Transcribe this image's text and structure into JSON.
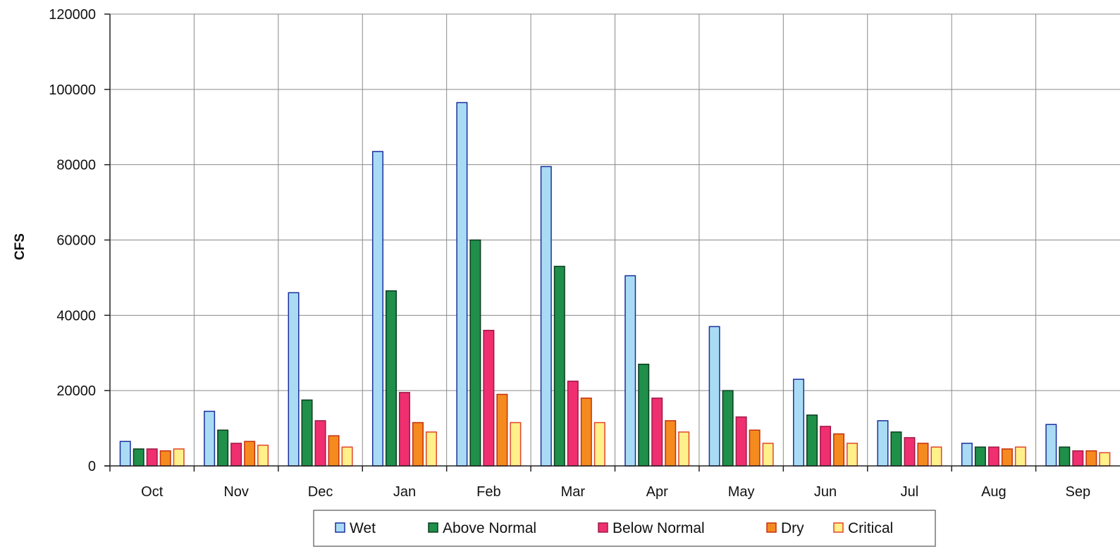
{
  "chart_data": {
    "type": "bar",
    "title": "",
    "xlabel": "",
    "ylabel": "CFS",
    "ylim": [
      0,
      120000
    ],
    "yticks": [
      0,
      20000,
      40000,
      60000,
      80000,
      100000,
      120000
    ],
    "grid": true,
    "legend_position": "bottom",
    "categories": [
      "Oct",
      "Nov",
      "Dec",
      "Jan",
      "Feb",
      "Mar",
      "Apr",
      "May",
      "Jun",
      "Jul",
      "Aug",
      "Sep"
    ],
    "series": [
      {
        "name": "Wet",
        "color": "#a9dcf4",
        "stroke": "#1a2f9c",
        "values": [
          6500,
          14500,
          46000,
          83500,
          96500,
          79500,
          50500,
          37000,
          23000,
          12000,
          6000,
          11000
        ]
      },
      {
        "name": "Above Normal",
        "color": "#1f8f4a",
        "stroke": "#0b3d1f",
        "values": [
          4500,
          9500,
          17500,
          46500,
          60000,
          53000,
          27000,
          20000,
          13500,
          9000,
          5000,
          5000
        ]
      },
      {
        "name": "Below Normal",
        "color": "#ef2f6f",
        "stroke": "#a01848",
        "values": [
          4500,
          6000,
          12000,
          19500,
          36000,
          22500,
          18000,
          13000,
          10500,
          7500,
          5000,
          4000
        ]
      },
      {
        "name": "Dry",
        "color": "#f58a1f",
        "stroke": "#c5300e",
        "values": [
          4000,
          6500,
          8000,
          11500,
          19000,
          18000,
          12000,
          9500,
          8500,
          6000,
          4500,
          4000
        ]
      },
      {
        "name": "Critical",
        "color": "#fff08a",
        "stroke": "#e2442a",
        "values": [
          4500,
          5500,
          5000,
          9000,
          11500,
          11500,
          9000,
          6000,
          6000,
          5000,
          5000,
          3500
        ]
      }
    ]
  }
}
